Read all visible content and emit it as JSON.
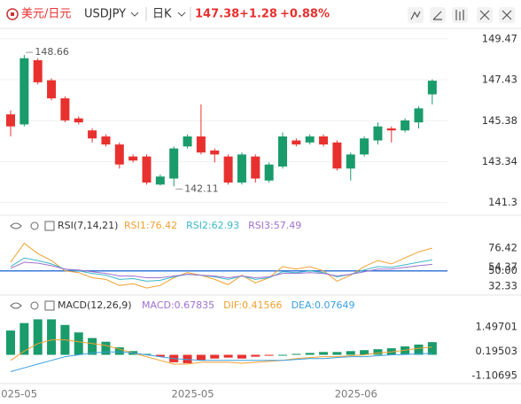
{
  "header": {
    "symbol": "美元/日元",
    "code": "USDJPY",
    "period": "日K",
    "price": "147.38",
    "change": "+1.28",
    "change_pct": "+0.88%"
  },
  "chart_data": [
    {
      "type": "candlestick",
      "categories": [
        "2025-05",
        null,
        null,
        null,
        null,
        null,
        null,
        null,
        null,
        null,
        null,
        null,
        null,
        "2025-05",
        null,
        null,
        null,
        null,
        null,
        null,
        null,
        null,
        null,
        null,
        null,
        "2025-06",
        null,
        null,
        null,
        null,
        null,
        null
      ],
      "open": [
        145.7,
        145.2,
        148.4,
        147.4,
        146.5,
        145.5,
        144.9,
        144.6,
        144.2,
        143.6,
        143.6,
        142.2,
        142.5,
        144.1,
        144.6,
        143.9,
        143.6,
        142.3,
        143.6,
        142.4,
        143.1,
        144.4,
        144.3,
        144.6,
        144.3,
        143.0,
        143.7,
        144.4,
        145.0,
        144.9,
        145.3,
        146.7
      ],
      "close": [
        145.1,
        148.5,
        147.3,
        146.5,
        145.4,
        145.3,
        144.5,
        144.2,
        143.2,
        143.4,
        142.3,
        142.6,
        144.0,
        144.6,
        143.8,
        143.7,
        142.3,
        143.7,
        142.5,
        143.2,
        144.6,
        144.2,
        144.6,
        144.2,
        143.0,
        143.7,
        144.5,
        145.1,
        144.9,
        145.4,
        146.0,
        147.38
      ],
      "high": [
        145.9,
        148.66,
        148.5,
        147.5,
        146.6,
        145.6,
        145.0,
        144.7,
        144.3,
        143.7,
        143.7,
        142.7,
        144.1,
        144.7,
        146.2,
        144.0,
        143.7,
        143.8,
        143.7,
        143.3,
        144.8,
        144.5,
        144.7,
        144.7,
        144.4,
        143.8,
        144.6,
        145.3,
        145.1,
        145.5,
        146.1,
        147.45
      ],
      "low": [
        144.6,
        145.1,
        147.2,
        146.4,
        145.3,
        145.2,
        144.3,
        144.1,
        143.0,
        143.3,
        142.2,
        142.15,
        142.11,
        144.0,
        143.7,
        143.3,
        142.2,
        142.2,
        142.3,
        142.3,
        143.0,
        144.1,
        144.2,
        144.1,
        142.9,
        142.4,
        143.6,
        144.2,
        144.3,
        144.8,
        145.0,
        146.2
      ],
      "up_color": "#1a9b6b",
      "down_color": "#e8312f",
      "annotations": [
        148.66,
        142.11
      ],
      "ylim": [
        140.8,
        150.3
      ],
      "yticks": [
        149.47,
        147.43,
        145.38,
        143.34,
        141.3
      ],
      "grid": true
    },
    {
      "type": "line",
      "title": "RSI(7,14,21)",
      "series": [
        {
          "name": "RSI1:76.42",
          "color": "#f0a030",
          "values": [
            60,
            82,
            70,
            62,
            50,
            48,
            42,
            40,
            33,
            35,
            30,
            33,
            42,
            48,
            45,
            40,
            34,
            45,
            36,
            42,
            55,
            52,
            55,
            50,
            38,
            45,
            55,
            62,
            58,
            65,
            72,
            76.42
          ]
        },
        {
          "name": "RSI2:62.93",
          "color": "#3cb8c8",
          "values": [
            55,
            65,
            62,
            58,
            52,
            50,
            47,
            45,
            40,
            41,
            38,
            39,
            43,
            46,
            45,
            43,
            40,
            44,
            40,
            42,
            49,
            48,
            50,
            48,
            43,
            46,
            51,
            55,
            54,
            57,
            60,
            62.93
          ]
        },
        {
          "name": "RSI3:57.49",
          "color": "#a070d0",
          "values": [
            53,
            60,
            59,
            56,
            52,
            51,
            49,
            47,
            44,
            44,
            42,
            42,
            44,
            46,
            45,
            44,
            42,
            44,
            42,
            43,
            47,
            47,
            48,
            47,
            44,
            46,
            49,
            52,
            52,
            54,
            56,
            57.49
          ]
        }
      ],
      "reference_line": 50,
      "reference_color": "#3a78d8",
      "ylim": [
        25,
        95
      ],
      "yticks": [
        76.42,
        54.37,
        {
          "value": 50,
          "label": "50.00"
        },
        32.33
      ]
    },
    {
      "type": "macd",
      "title": "MACD(12,26,9)",
      "histogram": {
        "name": "MACD:0.67835",
        "color": "#a070d0",
        "up_color": "#1a9b6b",
        "down_color": "#e8312f",
        "values": [
          1.3,
          1.7,
          1.9,
          1.9,
          1.6,
          1.2,
          0.9,
          0.7,
          0.4,
          0.2,
          0.05,
          -0.1,
          -0.4,
          -0.45,
          -0.3,
          -0.2,
          -0.15,
          -0.2,
          -0.1,
          -0.05,
          0.0,
          0.05,
          0.1,
          0.15,
          0.15,
          0.2,
          0.25,
          0.3,
          0.35,
          0.45,
          0.55,
          0.67835
        ]
      },
      "series": [
        {
          "name": "DIF:0.41566",
          "color": "#f0a030",
          "values": [
            -0.3,
            0.2,
            0.6,
            0.8,
            0.8,
            0.7,
            0.6,
            0.5,
            0.3,
            0.1,
            -0.1,
            -0.3,
            -0.5,
            -0.5,
            -0.4,
            -0.4,
            -0.4,
            -0.45,
            -0.4,
            -0.35,
            -0.3,
            -0.2,
            -0.15,
            -0.1,
            -0.1,
            -0.05,
            0.0,
            0.1,
            0.15,
            0.25,
            0.35,
            0.41566
          ]
        },
        {
          "name": "DEA:0.07649",
          "color": "#3aa0e0",
          "values": [
            -0.9,
            -0.7,
            -0.5,
            -0.3,
            -0.1,
            0.0,
            0.1,
            0.15,
            0.15,
            0.1,
            0.0,
            -0.1,
            -0.2,
            -0.25,
            -0.3,
            -0.3,
            -0.3,
            -0.3,
            -0.3,
            -0.3,
            -0.3,
            -0.25,
            -0.2,
            -0.2,
            -0.15,
            -0.1,
            -0.1,
            -0.05,
            0.0,
            0.02,
            0.05,
            0.07649
          ]
        }
      ],
      "ylim": [
        -1.4,
        2.3
      ],
      "yticks": [
        1.49701,
        0.19503,
        -1.10695
      ]
    }
  ]
}
